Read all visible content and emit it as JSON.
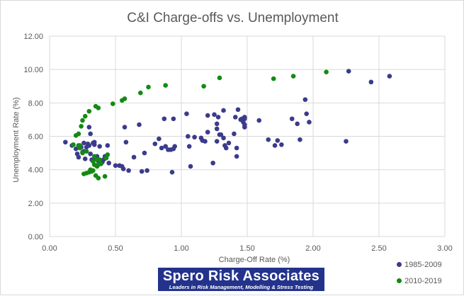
{
  "chart_data": {
    "type": "scatter",
    "title": "C&I Charge-offs vs. Unemployment",
    "xlabel": "Charge-Off Rate (%)",
    "ylabel": "Unemployment  Rate (%)",
    "xlim": [
      0,
      3
    ],
    "ylim": [
      0,
      12
    ],
    "x_ticks": [
      "0.00",
      "0.50",
      "1.00",
      "1.50",
      "2.00",
      "2.50",
      "3.00"
    ],
    "y_ticks": [
      "0.00",
      "2.00",
      "4.00",
      "6.00",
      "8.00",
      "10.00",
      "12.00"
    ],
    "grid": true,
    "legend_position": "bottom-right",
    "series": [
      {
        "name": "1985-2009",
        "color": "#3b3b8c",
        "points": [
          [
            0.12,
            5.65
          ],
          [
            0.17,
            5.45
          ],
          [
            0.2,
            5.25
          ],
          [
            0.21,
            4.95
          ],
          [
            0.22,
            5.45
          ],
          [
            0.22,
            4.75
          ],
          [
            0.24,
            5.35
          ],
          [
            0.25,
            5.05
          ],
          [
            0.26,
            5.1
          ],
          [
            0.26,
            5.6
          ],
          [
            0.27,
            4.65
          ],
          [
            0.28,
            5.35
          ],
          [
            0.29,
            5.55
          ],
          [
            0.3,
            5.45
          ],
          [
            0.3,
            6.55
          ],
          [
            0.31,
            6.15
          ],
          [
            0.31,
            4.95
          ],
          [
            0.32,
            4.6
          ],
          [
            0.33,
            5.6
          ],
          [
            0.34,
            5.65
          ],
          [
            0.34,
            5.5
          ],
          [
            0.35,
            4.65
          ],
          [
            0.36,
            4.8
          ],
          [
            0.37,
            4.5
          ],
          [
            0.38,
            5.4
          ],
          [
            0.4,
            4.45
          ],
          [
            0.41,
            4.6
          ],
          [
            0.42,
            4.8
          ],
          [
            0.44,
            5.45
          ],
          [
            0.45,
            4.4
          ],
          [
            0.5,
            4.25
          ],
          [
            0.53,
            4.25
          ],
          [
            0.55,
            4.2
          ],
          [
            0.56,
            4.05
          ],
          [
            0.57,
            6.55
          ],
          [
            0.58,
            5.65
          ],
          [
            0.6,
            3.95
          ],
          [
            0.64,
            4.75
          ],
          [
            0.68,
            6.7
          ],
          [
            0.7,
            3.9
          ],
          [
            0.72,
            5.0
          ],
          [
            0.74,
            3.95
          ],
          [
            0.8,
            5.55
          ],
          [
            0.83,
            5.85
          ],
          [
            0.85,
            5.3
          ],
          [
            0.87,
            7.05
          ],
          [
            0.88,
            5.4
          ],
          [
            0.9,
            5.2
          ],
          [
            0.92,
            5.2
          ],
          [
            0.93,
            3.85
          ],
          [
            0.94,
            5.25
          ],
          [
            0.95,
            5.4
          ],
          [
            0.94,
            7.05
          ],
          [
            1.04,
            7.35
          ],
          [
            1.05,
            6.0
          ],
          [
            1.06,
            5.4
          ],
          [
            1.07,
            4.2
          ],
          [
            1.1,
            5.95
          ],
          [
            1.15,
            5.9
          ],
          [
            1.16,
            5.75
          ],
          [
            1.18,
            5.7
          ],
          [
            1.2,
            6.25
          ],
          [
            1.2,
            7.25
          ],
          [
            1.24,
            4.4
          ],
          [
            1.25,
            7.3
          ],
          [
            1.27,
            6.75
          ],
          [
            1.27,
            5.7
          ],
          [
            1.27,
            6.45
          ],
          [
            1.28,
            7.15
          ],
          [
            1.29,
            6.1
          ],
          [
            1.3,
            6.1
          ],
          [
            1.32,
            7.55
          ],
          [
            1.32,
            5.9
          ],
          [
            1.33,
            5.45
          ],
          [
            1.34,
            5.3
          ],
          [
            1.36,
            5.6
          ],
          [
            1.4,
            6.15
          ],
          [
            1.41,
            7.15
          ],
          [
            1.42,
            5.3
          ],
          [
            1.42,
            4.8
          ],
          [
            1.43,
            7.6
          ],
          [
            1.45,
            7.0
          ],
          [
            1.46,
            7.05
          ],
          [
            1.47,
            6.85
          ],
          [
            1.48,
            6.55
          ],
          [
            1.48,
            6.7
          ],
          [
            1.48,
            7.05
          ],
          [
            1.48,
            7.15
          ],
          [
            1.59,
            6.95
          ],
          [
            1.66,
            5.8
          ],
          [
            1.71,
            5.45
          ],
          [
            1.73,
            5.75
          ],
          [
            1.76,
            5.5
          ],
          [
            1.84,
            7.05
          ],
          [
            1.88,
            6.75
          ],
          [
            1.9,
            5.8
          ],
          [
            1.94,
            8.2
          ],
          [
            1.95,
            7.35
          ],
          [
            1.97,
            6.85
          ],
          [
            2.25,
            5.7
          ],
          [
            2.27,
            9.9
          ],
          [
            2.44,
            9.25
          ],
          [
            2.58,
            9.6
          ]
        ]
      },
      {
        "name": "2010-2019",
        "color": "#138a13",
        "points": [
          [
            0.18,
            5.5
          ],
          [
            0.2,
            6.05
          ],
          [
            0.22,
            6.15
          ],
          [
            0.22,
            5.4
          ],
          [
            0.23,
            5.3
          ],
          [
            0.23,
            5.45
          ],
          [
            0.24,
            6.6
          ],
          [
            0.25,
            6.95
          ],
          [
            0.25,
            5.0
          ],
          [
            0.26,
            3.75
          ],
          [
            0.27,
            7.2
          ],
          [
            0.28,
            5.1
          ],
          [
            0.28,
            3.8
          ],
          [
            0.3,
            3.85
          ],
          [
            0.3,
            7.5
          ],
          [
            0.31,
            4.0
          ],
          [
            0.32,
            3.9
          ],
          [
            0.33,
            4.5
          ],
          [
            0.33,
            3.95
          ],
          [
            0.34,
            4.8
          ],
          [
            0.34,
            4.3
          ],
          [
            0.35,
            3.65
          ],
          [
            0.35,
            7.8
          ],
          [
            0.36,
            4.6
          ],
          [
            0.36,
            4.2
          ],
          [
            0.37,
            7.7
          ],
          [
            0.37,
            4.3
          ],
          [
            0.37,
            3.5
          ],
          [
            0.38,
            4.6
          ],
          [
            0.39,
            4.35
          ],
          [
            0.42,
            3.6
          ],
          [
            0.43,
            4.7
          ],
          [
            0.44,
            4.9
          ],
          [
            0.48,
            7.95
          ],
          [
            0.55,
            8.15
          ],
          [
            0.57,
            8.25
          ],
          [
            0.69,
            8.6
          ],
          [
            0.75,
            8.95
          ],
          [
            0.88,
            9.05
          ],
          [
            1.17,
            9.0
          ],
          [
            1.29,
            9.5
          ],
          [
            1.7,
            9.45
          ],
          [
            1.85,
            9.6
          ],
          [
            2.1,
            9.85
          ]
        ]
      }
    ]
  },
  "logo": {
    "name": "Spero Risk Associates",
    "tagline": "Leaders in Risk Management, Modelling & Stress Testing"
  }
}
